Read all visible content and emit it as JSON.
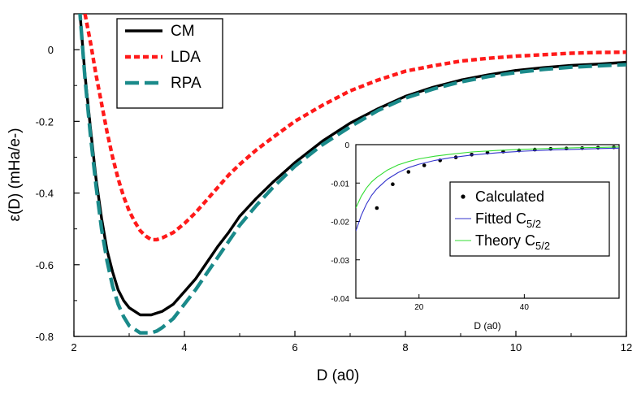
{
  "chart_data": [
    {
      "type": "line",
      "xlabel": "D (a0)",
      "ylabel": "ε(D) (mHa/e-)",
      "xlim": [
        2,
        12
      ],
      "ylim": [
        -0.8,
        0.1
      ],
      "x_ticks": [
        "2",
        "4",
        "6",
        "8",
        "10",
        "12"
      ],
      "y_ticks": [
        "0",
        "-0.2",
        "-0.4",
        "-0.6",
        "-0.8"
      ],
      "x_tick_values": [
        2,
        4,
        6,
        8,
        10,
        12
      ],
      "y_tick_values": [
        0,
        -0.2,
        -0.4,
        -0.6,
        -0.8
      ],
      "grid": false,
      "legend_position": "top-left",
      "series": [
        {
          "name": "CM",
          "color": "#000000",
          "style": "solid",
          "x": [
            2.1,
            2.2,
            2.3,
            2.4,
            2.5,
            2.6,
            2.7,
            2.8,
            2.9,
            3.0,
            3.1,
            3.2,
            3.3,
            3.4,
            3.5,
            3.6,
            3.8,
            4.0,
            4.2,
            4.4,
            4.6,
            4.8,
            5.0,
            5.3,
            5.6,
            6.0,
            6.5,
            7.0,
            7.5,
            8.0,
            8.5,
            9.0,
            9.5,
            10.0,
            10.5,
            11.0,
            11.5,
            12.0
          ],
          "y": [
            0.12,
            -0.07,
            -0.22,
            -0.36,
            -0.47,
            -0.56,
            -0.62,
            -0.67,
            -0.7,
            -0.72,
            -0.73,
            -0.74,
            -0.74,
            -0.74,
            -0.735,
            -0.73,
            -0.71,
            -0.675,
            -0.64,
            -0.595,
            -0.55,
            -0.51,
            -0.465,
            -0.415,
            -0.37,
            -0.315,
            -0.255,
            -0.205,
            -0.165,
            -0.13,
            -0.105,
            -0.085,
            -0.07,
            -0.058,
            -0.05,
            -0.044,
            -0.04,
            -0.035
          ]
        },
        {
          "name": "LDA",
          "color": "#ff1a1a",
          "style": "dotted",
          "x": [
            2.2,
            2.3,
            2.4,
            2.5,
            2.6,
            2.7,
            2.8,
            2.9,
            3.0,
            3.1,
            3.2,
            3.3,
            3.4,
            3.5,
            3.6,
            3.8,
            4.0,
            4.2,
            4.4,
            4.6,
            4.8,
            5.0,
            5.3,
            5.6,
            6.0,
            6.5,
            7.0,
            7.5,
            8.0,
            8.5,
            9.0,
            9.5,
            10.0,
            10.5,
            11.0,
            11.5,
            12.0
          ],
          "y": [
            0.1,
            0.02,
            -0.07,
            -0.15,
            -0.23,
            -0.3,
            -0.36,
            -0.41,
            -0.45,
            -0.48,
            -0.505,
            -0.52,
            -0.53,
            -0.53,
            -0.525,
            -0.51,
            -0.485,
            -0.455,
            -0.42,
            -0.385,
            -0.35,
            -0.32,
            -0.28,
            -0.245,
            -0.2,
            -0.155,
            -0.115,
            -0.085,
            -0.06,
            -0.045,
            -0.032,
            -0.024,
            -0.018,
            -0.014,
            -0.01,
            -0.008,
            -0.007
          ]
        },
        {
          "name": "RPA",
          "color": "#1a8a8a",
          "style": "dashed",
          "x": [
            2.1,
            2.2,
            2.3,
            2.4,
            2.5,
            2.6,
            2.7,
            2.8,
            2.9,
            3.0,
            3.1,
            3.2,
            3.3,
            3.4,
            3.5,
            3.6,
            3.8,
            4.0,
            4.2,
            4.4,
            4.6,
            4.8,
            5.0,
            5.3,
            5.6,
            6.0,
            6.5,
            7.0,
            7.5,
            8.0,
            8.5,
            9.0,
            9.5,
            10.0,
            10.5,
            11.0,
            11.5,
            12.0
          ],
          "y": [
            0.12,
            -0.08,
            -0.24,
            -0.38,
            -0.5,
            -0.59,
            -0.66,
            -0.71,
            -0.745,
            -0.77,
            -0.78,
            -0.79,
            -0.79,
            -0.79,
            -0.785,
            -0.775,
            -0.75,
            -0.71,
            -0.67,
            -0.625,
            -0.58,
            -0.535,
            -0.49,
            -0.435,
            -0.385,
            -0.325,
            -0.265,
            -0.215,
            -0.17,
            -0.135,
            -0.11,
            -0.09,
            -0.075,
            -0.064,
            -0.055,
            -0.049,
            -0.045,
            -0.042
          ]
        }
      ]
    },
    {
      "type": "line",
      "xlabel": "D (a0)",
      "ylabel": "",
      "xlim": [
        8,
        58
      ],
      "ylim": [
        -0.04,
        0
      ],
      "x_ticks": [
        "20",
        "40"
      ],
      "y_ticks": [
        "0",
        "-0.01",
        "-0.02",
        "-0.03",
        "-0.04"
      ],
      "x_tick_values": [
        20,
        40
      ],
      "y_tick_values": [
        0,
        -0.01,
        -0.02,
        -0.03,
        -0.04
      ],
      "grid": false,
      "legend_position": "right",
      "series": [
        {
          "name": "Calculated",
          "color": "#000000",
          "style": "markers",
          "x": [
            12,
            15,
            18,
            21,
            24,
            27,
            30,
            33,
            36,
            39,
            42,
            45,
            48,
            51,
            54,
            57
          ],
          "y": [
            -0.0165,
            -0.0103,
            -0.0071,
            -0.0054,
            -0.0041,
            -0.0033,
            -0.0026,
            -0.0021,
            -0.0018,
            -0.0015,
            -0.0013,
            -0.0011,
            -0.001,
            -0.0009,
            -0.0008,
            -0.0007
          ]
        },
        {
          "name": "Fitted C5/2",
          "color": "#3333cc",
          "style": "solid",
          "x": [
            8,
            9,
            10,
            11,
            12,
            14,
            16,
            18,
            20,
            23,
            26,
            30,
            35,
            40,
            45,
            50,
            55,
            58
          ],
          "y": [
            -0.0225,
            -0.0185,
            -0.0155,
            -0.0132,
            -0.0115,
            -0.009,
            -0.0073,
            -0.006,
            -0.0051,
            -0.0041,
            -0.0034,
            -0.0027,
            -0.0021,
            -0.0017,
            -0.0014,
            -0.0012,
            -0.001,
            -0.0009
          ]
        },
        {
          "name": "Theory C5/2",
          "color": "#33dd33",
          "style": "solid",
          "x": [
            8,
            9,
            10,
            11,
            12,
            14,
            16,
            18,
            20,
            23,
            26,
            30,
            35,
            40,
            45,
            50,
            55,
            58
          ],
          "y": [
            -0.0165,
            -0.0135,
            -0.0113,
            -0.0097,
            -0.0085,
            -0.0066,
            -0.0053,
            -0.0044,
            -0.0037,
            -0.003,
            -0.0025,
            -0.0019,
            -0.0015,
            -0.0012,
            -0.001,
            -0.0008,
            -0.0007,
            -0.0006
          ]
        }
      ]
    }
  ]
}
